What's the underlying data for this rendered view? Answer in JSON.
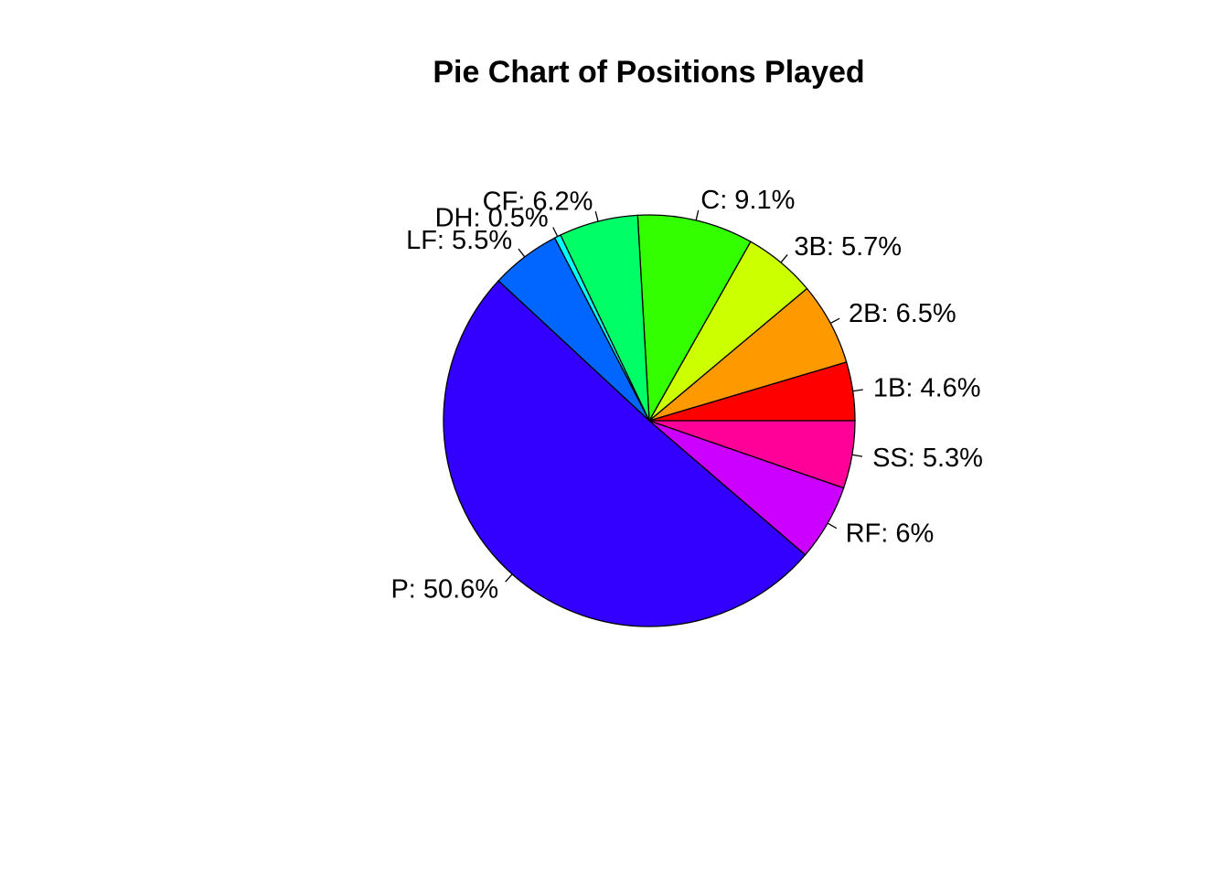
{
  "chart_data": {
    "type": "pie",
    "title": "Pie Chart of Positions Played",
    "slices": [
      {
        "label": "1B: 4.6%",
        "value": 4.6,
        "color": "#FF0000"
      },
      {
        "label": "2B: 6.5%",
        "value": 6.5,
        "color": "#FF9900"
      },
      {
        "label": "3B: 5.7%",
        "value": 5.7,
        "color": "#CCFF00"
      },
      {
        "label": "C: 9.1%",
        "value": 9.1,
        "color": "#33FF00"
      },
      {
        "label": "CF: 6.2%",
        "value": 6.2,
        "color": "#00FF66"
      },
      {
        "label": "DH: 0.5%",
        "value": 0.5,
        "color": "#00FFFF"
      },
      {
        "label": "LF: 5.5%",
        "value": 5.5,
        "color": "#0066FF"
      },
      {
        "label": "P: 50.6%",
        "value": 50.6,
        "color": "#3300FF"
      },
      {
        "label": "RF: 6%",
        "value": 6.0,
        "color": "#CC00FF"
      },
      {
        "label": "SS: 5.3%",
        "value": 5.3,
        "color": "#FF0099"
      }
    ],
    "start_angle": "3 o'clock",
    "direction": "counterclockwise",
    "legend": "none"
  }
}
